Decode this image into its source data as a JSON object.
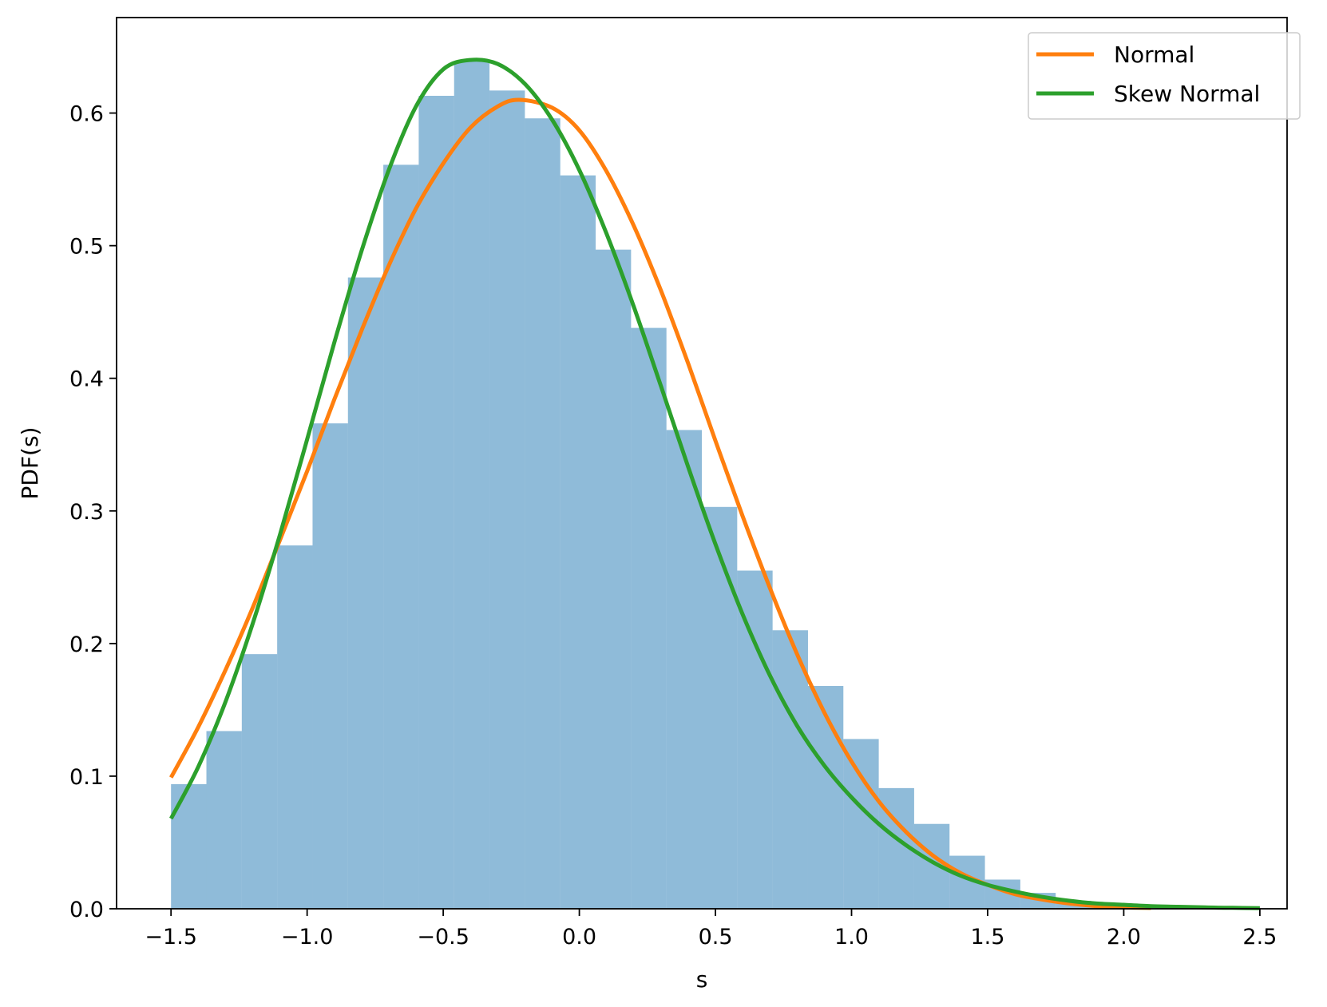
{
  "chart_data": {
    "type": "bar",
    "xlabel": "s",
    "ylabel": "PDF(s)",
    "xlim": [
      -1.7,
      2.6
    ],
    "ylim": [
      0.0,
      0.672
    ],
    "x_ticks": [
      -1.5,
      -1.0,
      -0.5,
      0.0,
      0.5,
      1.0,
      1.5,
      2.0,
      2.5
    ],
    "x_tick_labels": [
      "−1.5",
      "−1.0",
      "−0.5",
      "0.0",
      "0.5",
      "1.0",
      "1.5",
      "2.0",
      "2.5"
    ],
    "y_ticks": [
      0.0,
      0.1,
      0.2,
      0.3,
      0.4,
      0.5,
      0.6
    ],
    "y_tick_labels": [
      "0.0",
      "0.1",
      "0.2",
      "0.3",
      "0.4",
      "0.5",
      "0.6"
    ],
    "grid": false,
    "legend_position": "top-right",
    "histogram": {
      "color": "#1f77b4",
      "opacity": 0.5,
      "bin_edges": [
        -1.5,
        -1.37,
        -1.24,
        -1.11,
        -0.98,
        -0.85,
        -0.72,
        -0.59,
        -0.46,
        -0.33,
        -0.2,
        -0.07,
        0.06,
        0.19,
        0.32,
        0.45,
        0.58,
        0.71,
        0.84,
        0.97,
        1.1,
        1.23,
        1.36,
        1.49,
        1.62,
        1.75,
        1.88,
        2.01
      ],
      "values": [
        0.094,
        0.134,
        0.192,
        0.274,
        0.366,
        0.476,
        0.561,
        0.613,
        0.639,
        0.617,
        0.596,
        0.553,
        0.497,
        0.438,
        0.361,
        0.303,
        0.255,
        0.21,
        0.168,
        0.128,
        0.091,
        0.064,
        0.04,
        0.022,
        0.012,
        0.006,
        0.003
      ]
    },
    "series": [
      {
        "name": "Normal",
        "color": "#ff7f0e",
        "x": [
          -1.5,
          -1.4,
          -1.3,
          -1.2,
          -1.1,
          -1.0,
          -0.9,
          -0.8,
          -0.7,
          -0.6,
          -0.5,
          -0.4,
          -0.3,
          -0.22,
          -0.1,
          0.0,
          0.1,
          0.2,
          0.3,
          0.4,
          0.5,
          0.6,
          0.7,
          0.8,
          0.9,
          1.0,
          1.1,
          1.2,
          1.3,
          1.4,
          1.5,
          1.6,
          1.7,
          1.8,
          1.9,
          2.0,
          2.1
        ],
        "values": [
          0.099,
          0.137,
          0.18,
          0.227,
          0.278,
          0.33,
          0.384,
          0.436,
          0.485,
          0.528,
          0.562,
          0.589,
          0.605,
          0.61,
          0.604,
          0.587,
          0.556,
          0.515,
          0.466,
          0.411,
          0.353,
          0.296,
          0.242,
          0.192,
          0.148,
          0.111,
          0.081,
          0.058,
          0.04,
          0.027,
          0.018,
          0.011,
          0.007,
          0.004,
          0.002,
          0.001,
          0.0006
        ]
      },
      {
        "name": "Skew Normal",
        "color": "#2ca02c",
        "x": [
          -1.5,
          -1.4,
          -1.3,
          -1.2,
          -1.1,
          -1.0,
          -0.9,
          -0.8,
          -0.7,
          -0.6,
          -0.5,
          -0.4,
          -0.3,
          -0.2,
          -0.1,
          0.0,
          0.1,
          0.2,
          0.3,
          0.4,
          0.5,
          0.6,
          0.7,
          0.8,
          0.9,
          1.0,
          1.1,
          1.2,
          1.3,
          1.4,
          1.5,
          1.6,
          1.7,
          1.8,
          1.9,
          2.0,
          2.1,
          2.2,
          2.3,
          2.4,
          2.5
        ],
        "values": [
          0.068,
          0.107,
          0.156,
          0.215,
          0.282,
          0.354,
          0.427,
          0.496,
          0.557,
          0.605,
          0.633,
          0.64,
          0.637,
          0.622,
          0.595,
          0.557,
          0.509,
          0.454,
          0.394,
          0.333,
          0.275,
          0.222,
          0.176,
          0.138,
          0.108,
          0.084,
          0.064,
          0.048,
          0.035,
          0.025,
          0.018,
          0.013,
          0.009,
          0.006,
          0.004,
          0.003,
          0.002,
          0.0015,
          0.001,
          0.0007,
          0.0005
        ]
      }
    ]
  }
}
